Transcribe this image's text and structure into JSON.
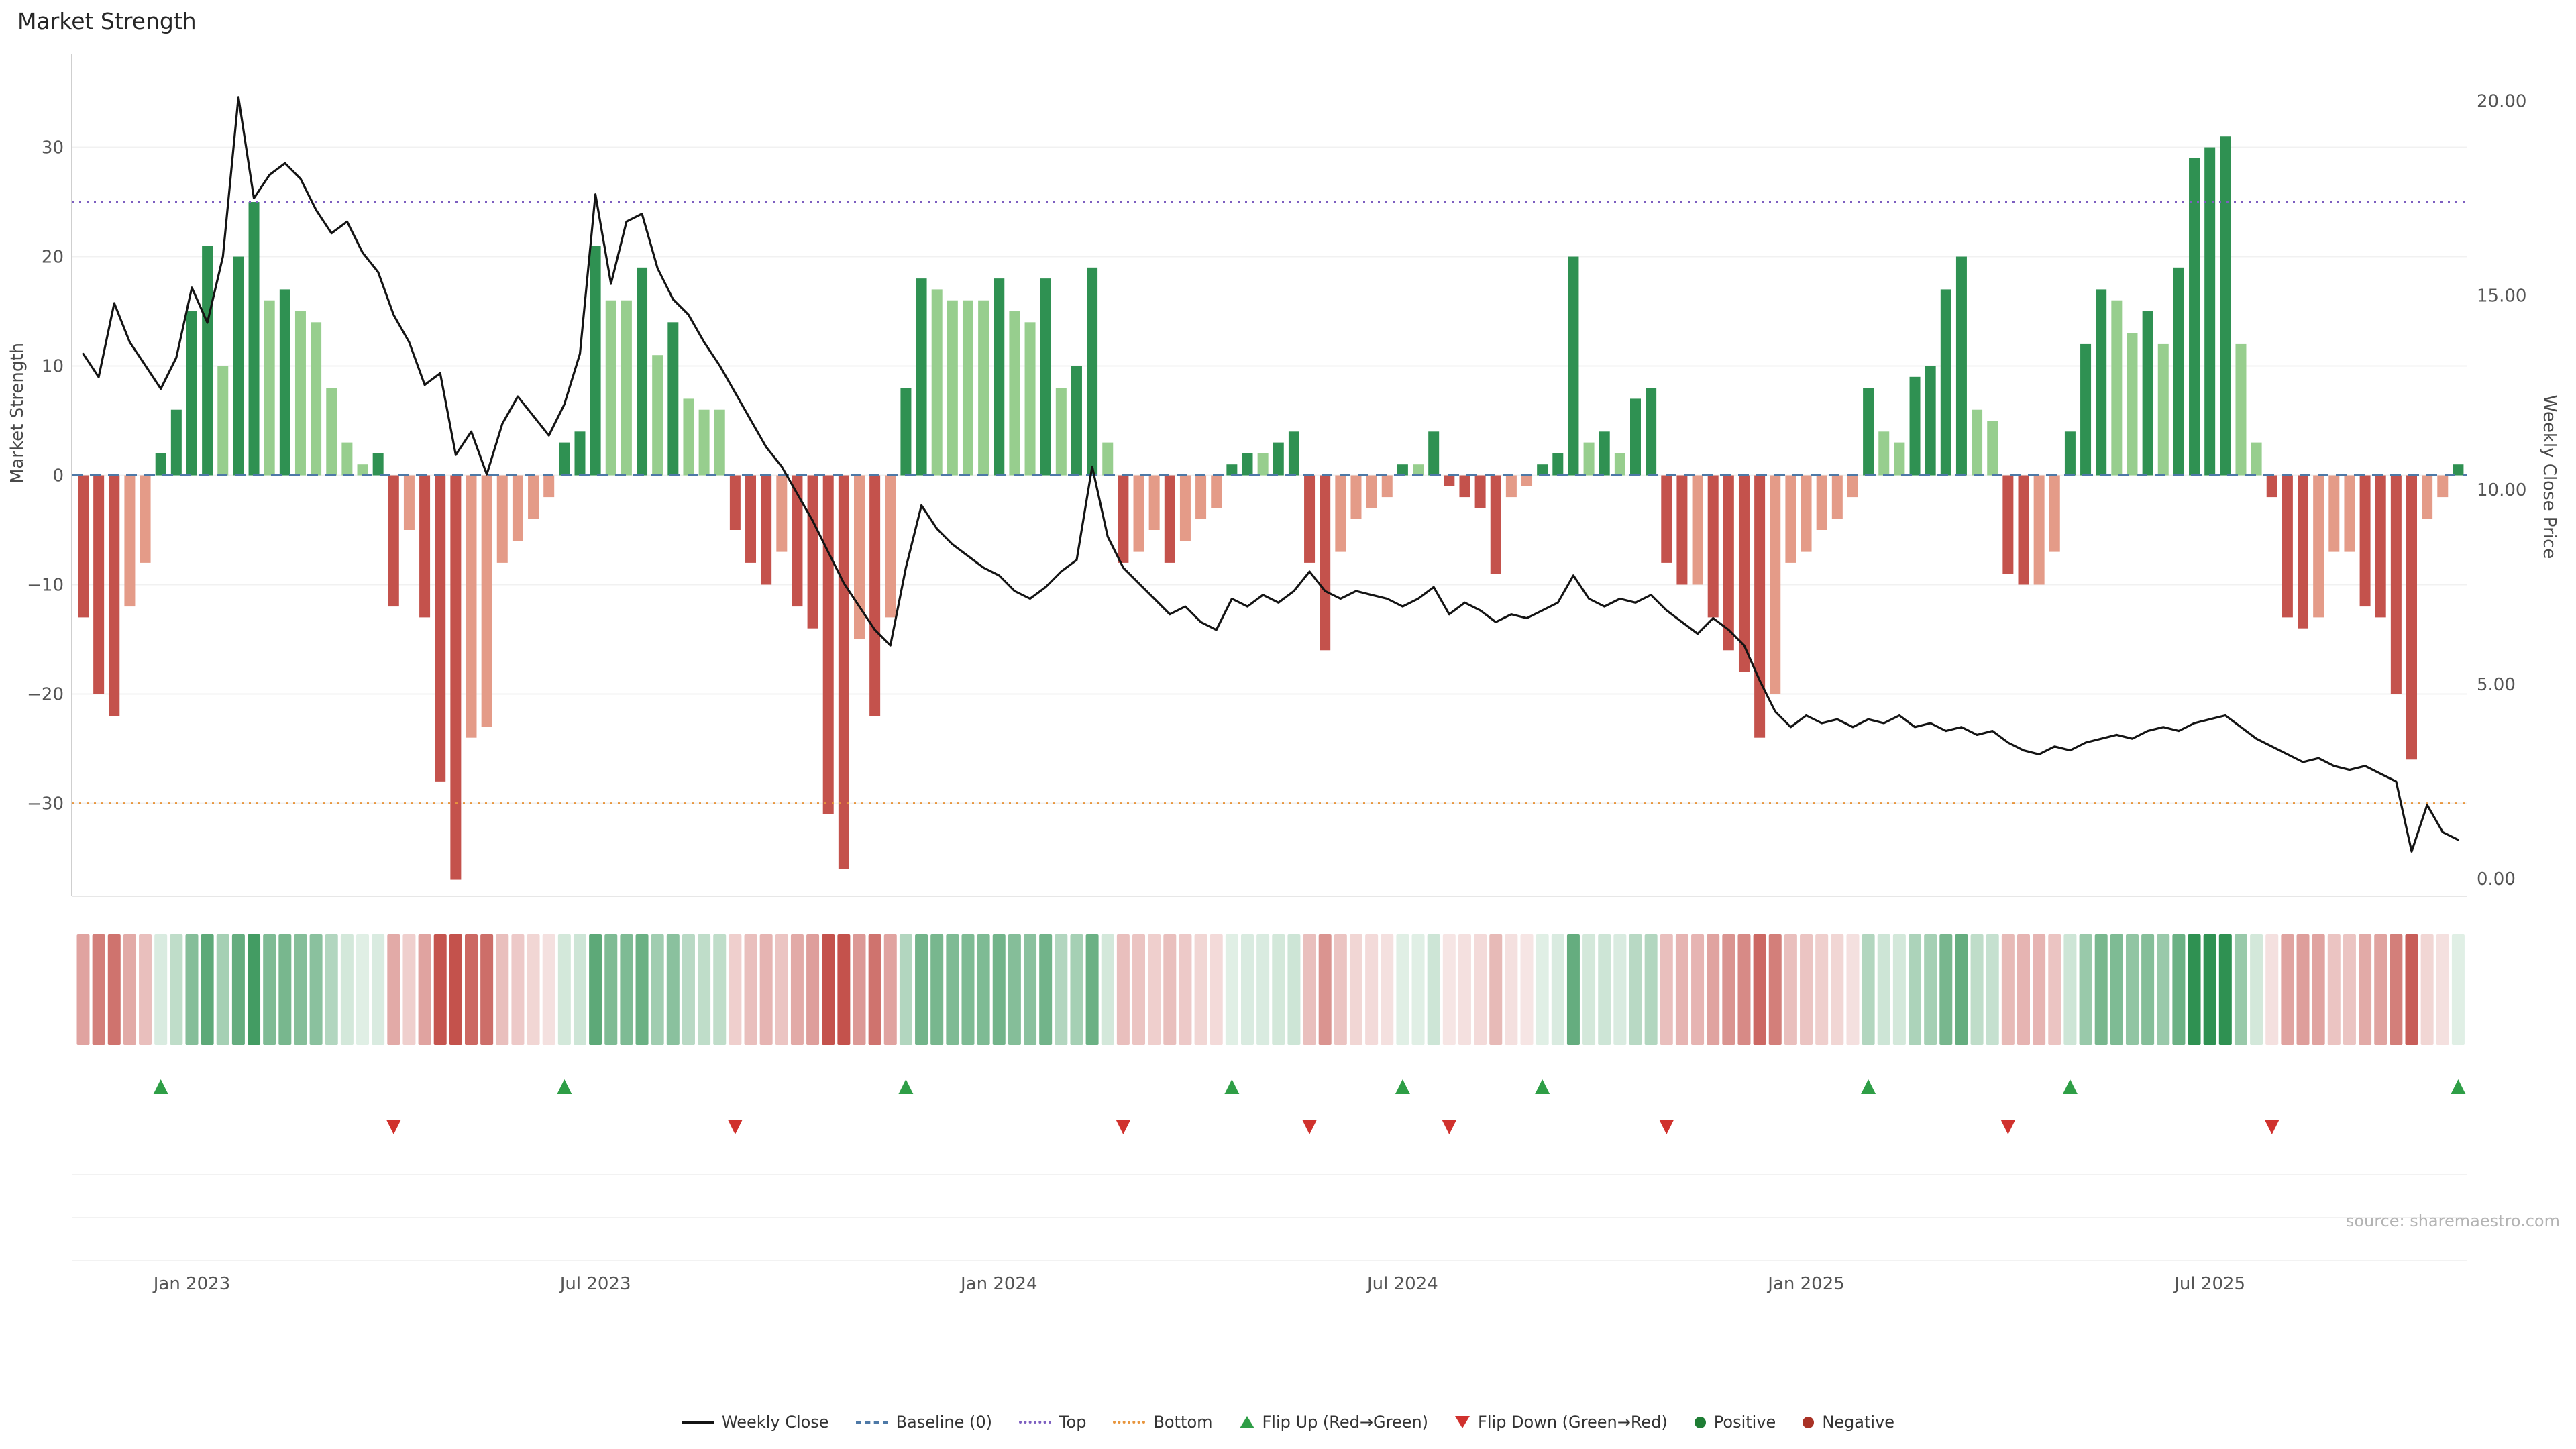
{
  "title": "Market Strength",
  "source": "source: sharemaestro.com",
  "colors": {
    "pos_dark": "#2f9152",
    "pos_light": "#97ce8e",
    "neg_dark": "#c4524c",
    "neg_light": "#e49b88",
    "line": "#141414",
    "baseline": "#4e79a7",
    "top": "#7d5fc0",
    "bottom": "#e8953c",
    "flip_up": "#2e9e46",
    "flip_down": "#d0312d",
    "positive_dot": "#1e7d34",
    "negative_dot": "#a93226",
    "grid": "#f1f1f1",
    "spine": "#cfcfcf",
    "axis_text": "#555555",
    "title_text": "#262626",
    "source_text": "#b3b3b3"
  },
  "chart_data": {
    "type": "combo",
    "components": [
      "bar",
      "line",
      "heatmap",
      "flip-markers"
    ],
    "title": "Market Strength",
    "n_points": 154,
    "x_unit": "week",
    "x_ticks": [
      {
        "index": 7,
        "label": "Jan 2023"
      },
      {
        "index": 33,
        "label": "Jul 2023"
      },
      {
        "index": 59,
        "label": "Jan 2024"
      },
      {
        "index": 85,
        "label": "Jul 2024"
      },
      {
        "index": 111,
        "label": "Jan 2025"
      },
      {
        "index": 137,
        "label": "Jul 2025"
      }
    ],
    "axes": {
      "left": {
        "title": "Market Strength",
        "tick_values": [
          30,
          20,
          10,
          0,
          -10,
          -20,
          -30
        ],
        "tick_labels": [
          "30",
          "20",
          "10",
          "0",
          "−10",
          "−20",
          "−30"
        ],
        "lim": [
          -38.5,
          38.5
        ]
      },
      "right": {
        "title": "Weekly Close Price",
        "tick_values": [
          20,
          15,
          10,
          5,
          0
        ],
        "tick_labels": [
          "20.00",
          "15.00",
          "10.00",
          "5.00",
          "0.00"
        ],
        "lim": [
          -0.45,
          21.2
        ]
      }
    },
    "reference_lines": {
      "baseline": 0,
      "top": 25,
      "bottom": -30
    },
    "grid": "horizontal-light",
    "legend_position": "bottom-center",
    "series": [
      {
        "name": "Market Strength",
        "type": "bar",
        "axis": "left",
        "values": [
          -13,
          -20,
          -22,
          -12,
          -8,
          2,
          6,
          15,
          21,
          10,
          20,
          25,
          16,
          17,
          15,
          14,
          8,
          3,
          1,
          2,
          -12,
          -5,
          -13,
          -28,
          -37,
          -24,
          -23,
          -8,
          -6,
          -4,
          -2,
          3,
          4,
          21,
          16,
          16,
          19,
          11,
          14,
          7,
          6,
          6,
          -5,
          -8,
          -10,
          -7,
          -12,
          -14,
          -31,
          -36,
          -15,
          -22,
          -13,
          8,
          18,
          17,
          16,
          16,
          16,
          18,
          15,
          14,
          18,
          8,
          10,
          19,
          3,
          -8,
          -7,
          -5,
          -8,
          -6,
          -4,
          -3,
          1,
          2,
          2,
          3,
          4,
          -8,
          -16,
          -7,
          -4,
          -3,
          -2,
          1,
          1,
          4,
          -1,
          -2,
          -3,
          -9,
          -2,
          -1,
          1,
          2,
          20,
          3,
          4,
          2,
          7,
          8,
          -8,
          -10,
          -10,
          -13,
          -16,
          -18,
          -24,
          -20,
          -8,
          -7,
          -5,
          -4,
          -2,
          8,
          4,
          3,
          9,
          10,
          17,
          20,
          6,
          5,
          -9,
          -10,
          -10,
          -7,
          4,
          12,
          17,
          16,
          13,
          15,
          12,
          19,
          29,
          30,
          31,
          12,
          3,
          -2,
          -13,
          -14,
          -13,
          -7,
          -7,
          -12,
          -13,
          -20,
          -26,
          -4,
          -2,
          1
        ],
        "shade_key": {
          "d": "dark (momentum strengthening)",
          "l": "light (momentum weakening)"
        },
        "shades": [
          "dddll",
          "ddddlddldllllld",
          "dldddllllll",
          "dddlldldlll",
          "dddlddddldl",
          "ddlllldlldlddl",
          "dlldlll",
          "ddldd",
          "ddllll",
          "dld",
          "ddddll",
          "dddldldd",
          "ddlddddllllll",
          "dllddddll",
          "ddll",
          "dddlldlddddll",
          "dddlllddddll",
          "d"
        ]
      },
      {
        "name": "Weekly Close",
        "type": "line",
        "axis": "right",
        "values": [
          13.5,
          12.9,
          14.8,
          13.8,
          13.2,
          12.6,
          13.4,
          15.2,
          14.3,
          16.0,
          20.1,
          17.5,
          18.1,
          18.4,
          18.0,
          17.2,
          16.6,
          16.9,
          16.1,
          15.6,
          14.5,
          13.8,
          12.7,
          13.0,
          10.9,
          11.5,
          10.4,
          11.7,
          12.4,
          11.9,
          11.4,
          12.2,
          13.5,
          17.6,
          15.3,
          16.9,
          17.1,
          15.7,
          14.9,
          14.5,
          13.8,
          13.2,
          12.5,
          11.8,
          11.1,
          10.6,
          9.9,
          9.2,
          8.4,
          7.6,
          7.0,
          6.4,
          6.0,
          8.0,
          9.6,
          9.0,
          8.6,
          8.3,
          8.0,
          7.8,
          7.4,
          7.2,
          7.5,
          7.9,
          8.2,
          10.6,
          8.8,
          8.0,
          7.6,
          7.2,
          6.8,
          7.0,
          6.6,
          6.4,
          7.2,
          7.0,
          7.3,
          7.1,
          7.4,
          7.9,
          7.4,
          7.2,
          7.4,
          7.3,
          7.2,
          7.0,
          7.2,
          7.5,
          6.8,
          7.1,
          6.9,
          6.6,
          6.8,
          6.7,
          6.9,
          7.1,
          7.8,
          7.2,
          7.0,
          7.2,
          7.1,
          7.3,
          6.9,
          6.6,
          6.3,
          6.7,
          6.4,
          6.0,
          5.1,
          4.3,
          3.9,
          4.2,
          4.0,
          4.1,
          3.9,
          4.1,
          4.0,
          4.2,
          3.9,
          4.0,
          3.8,
          3.9,
          3.7,
          3.8,
          3.5,
          3.3,
          3.2,
          3.4,
          3.3,
          3.5,
          3.6,
          3.7,
          3.6,
          3.8,
          3.9,
          3.8,
          4.0,
          4.1,
          4.2,
          3.9,
          3.6,
          3.4,
          3.2,
          3.0,
          3.1,
          2.9,
          2.8,
          2.9,
          2.7,
          2.5,
          0.7,
          1.9,
          1.2,
          1.0
        ]
      }
    ],
    "heatmap": "color strip mirrors Market Strength bar values (green positive / red negative, intensity = magnitude)",
    "flip_up_indices": [
      5,
      31,
      53,
      74,
      85,
      94,
      115,
      128,
      153
    ],
    "flip_down_indices": [
      20,
      42,
      67,
      79,
      88,
      102,
      124,
      141
    ],
    "legend": [
      {
        "label": "Weekly Close",
        "symbol": "black-line"
      },
      {
        "label": "Baseline (0)",
        "symbol": "blue-dashed-line"
      },
      {
        "label": "Top",
        "symbol": "purple-dotted-line"
      },
      {
        "label": "Bottom",
        "symbol": "orange-dotted-line"
      },
      {
        "label": "Flip Up (Red→Green)",
        "symbol": "green-up-triangle"
      },
      {
        "label": "Flip Down (Green→Red)",
        "symbol": "red-down-triangle"
      },
      {
        "label": "Positive",
        "symbol": "green-dot"
      },
      {
        "label": "Negative",
        "symbol": "red-dot"
      }
    ]
  }
}
